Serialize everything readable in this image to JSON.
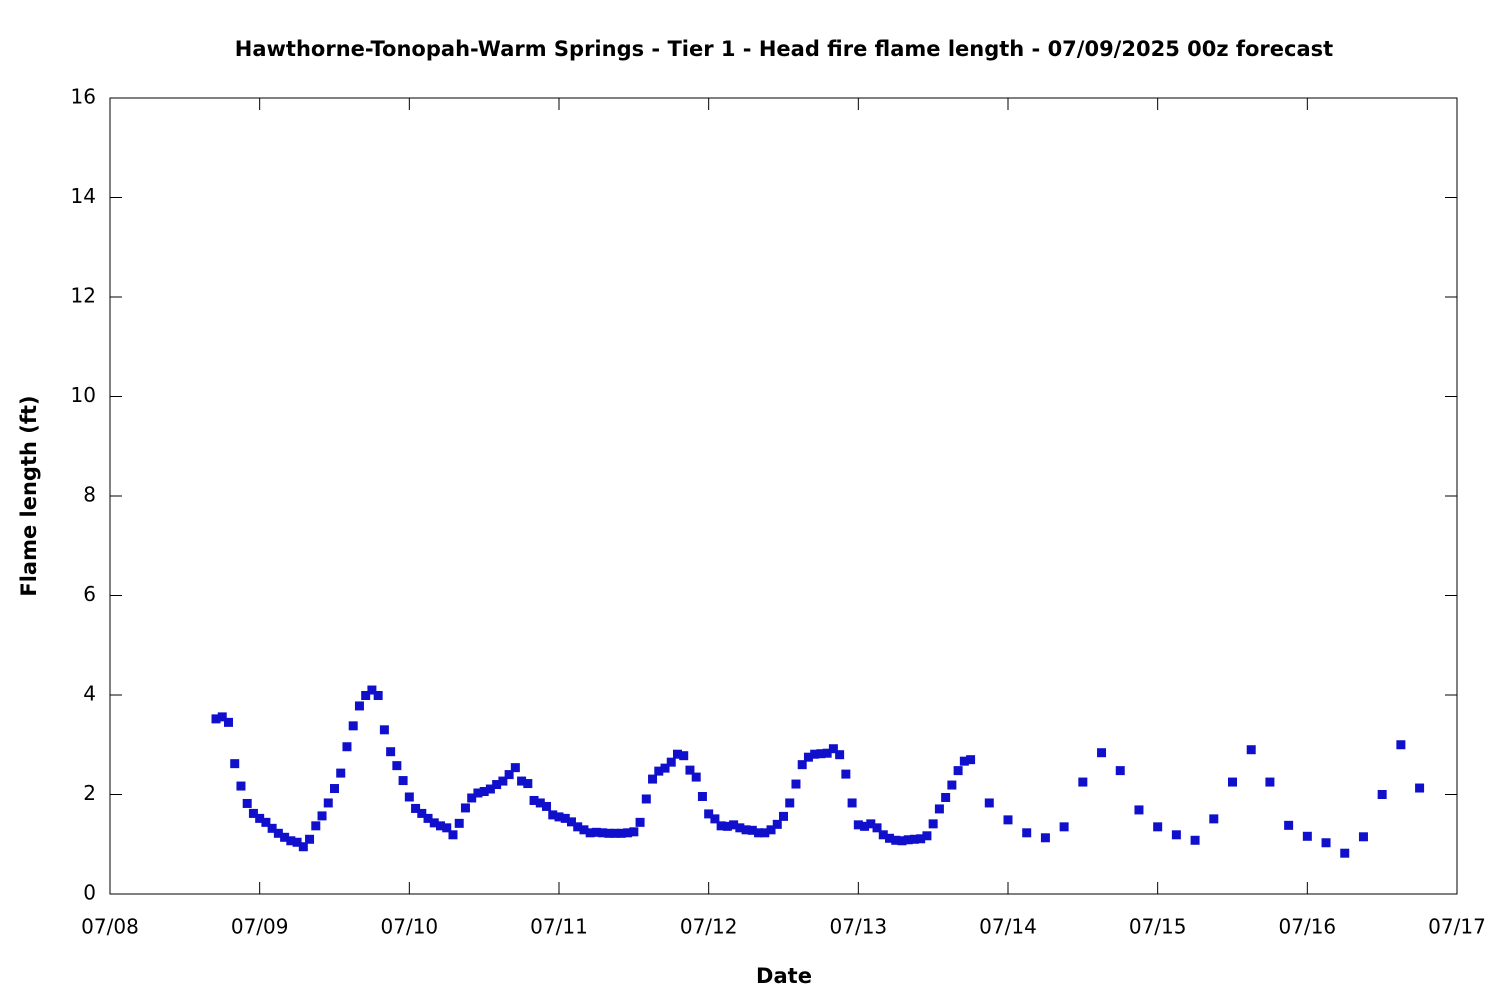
{
  "chart_data": {
    "type": "scatter",
    "title": "Hawthorne-Tonopah-Warm Springs - Tier 1 - Head fire flame length - 07/09/2025 00z forecast",
    "x_label": "Date",
    "y_label": "Flame length (ft)",
    "color": "#1010cc",
    "xlim": [
      0,
      216
    ],
    "xticks": [
      {
        "value": 0,
        "label": "07/08"
      },
      {
        "value": 24,
        "label": "07/09"
      },
      {
        "value": 48,
        "label": "07/10"
      },
      {
        "value": 72,
        "label": "07/11"
      },
      {
        "value": 96,
        "label": "07/12"
      },
      {
        "value": 120,
        "label": "07/13"
      },
      {
        "value": 144,
        "label": "07/14"
      },
      {
        "value": 168,
        "label": "07/15"
      },
      {
        "value": 192,
        "label": "07/16"
      },
      {
        "value": 216,
        "label": "07/17"
      }
    ],
    "ylim": [
      0,
      16
    ],
    "yticks": [
      0,
      2,
      4,
      6,
      8,
      10,
      12,
      14,
      16
    ],
    "x": [
      17,
      18,
      19,
      20,
      21,
      22,
      23,
      24,
      25,
      26,
      27,
      28,
      29,
      30,
      31,
      32,
      33,
      34,
      35,
      36,
      37,
      38,
      39,
      40,
      41,
      42,
      43,
      44,
      45,
      46,
      47,
      48,
      49,
      50,
      51,
      52,
      53,
      54,
      55,
      56,
      57,
      58,
      59,
      60,
      61,
      62,
      63,
      64,
      65,
      66,
      67,
      68,
      69,
      70,
      71,
      72,
      73,
      74,
      75,
      76,
      77,
      78,
      79,
      80,
      81,
      82,
      83,
      84,
      85,
      86,
      87,
      88,
      89,
      90,
      91,
      92,
      93,
      94,
      95,
      96,
      97,
      98,
      99,
      100,
      101,
      102,
      103,
      104,
      105,
      106,
      107,
      108,
      109,
      110,
      111,
      112,
      113,
      114,
      115,
      116,
      117,
      118,
      119,
      120,
      121,
      122,
      123,
      124,
      125,
      126,
      127,
      128,
      129,
      130,
      131,
      132,
      133,
      134,
      135,
      136,
      137,
      138,
      141,
      144,
      147,
      150,
      153,
      156,
      159,
      162,
      165,
      168,
      171,
      174,
      177,
      180,
      183,
      186,
      189,
      192,
      195,
      198,
      201,
      204,
      207,
      210
    ],
    "values": [
      3.52,
      3.56,
      3.45,
      2.62,
      2.17,
      1.82,
      1.62,
      1.52,
      1.44,
      1.32,
      1.22,
      1.14,
      1.07,
      1.04,
      0.95,
      1.1,
      1.37,
      1.57,
      1.83,
      2.12,
      2.43,
      2.96,
      3.38,
      3.78,
      3.99,
      4.1,
      3.99,
      3.3,
      2.86,
      2.58,
      2.28,
      1.95,
      1.72,
      1.62,
      1.52,
      1.43,
      1.37,
      1.33,
      1.19,
      1.42,
      1.73,
      1.93,
      2.03,
      2.06,
      2.11,
      2.2,
      2.27,
      2.4,
      2.54,
      2.27,
      2.22,
      1.88,
      1.83,
      1.76,
      1.59,
      1.55,
      1.52,
      1.45,
      1.35,
      1.29,
      1.23,
      1.24,
      1.23,
      1.22,
      1.22,
      1.22,
      1.23,
      1.25,
      1.44,
      1.91,
      2.31,
      2.47,
      2.53,
      2.65,
      2.81,
      2.78,
      2.49,
      2.35,
      1.96,
      1.61,
      1.51,
      1.37,
      1.36,
      1.39,
      1.33,
      1.29,
      1.28,
      1.23,
      1.23,
      1.29,
      1.4,
      1.56,
      1.83,
      2.21,
      2.6,
      2.75,
      2.81,
      2.82,
      2.83,
      2.92,
      2.8,
      2.41,
      1.83,
      1.39,
      1.36,
      1.41,
      1.33,
      1.19,
      1.12,
      1.08,
      1.07,
      1.09,
      1.1,
      1.11,
      1.17,
      1.41,
      1.71,
      1.94,
      2.19,
      2.48,
      2.67,
      2.7,
      1.83,
      1.49,
      1.23,
      1.13,
      1.35,
      2.25,
      2.84,
      2.48,
      1.69,
      1.35,
      1.19,
      1.08,
      1.51,
      2.25,
      2.9,
      2.25,
      1.38,
      1.16,
      1.03,
      0.82,
      1.15,
      2.0,
      3.0,
      2.13
    ]
  }
}
